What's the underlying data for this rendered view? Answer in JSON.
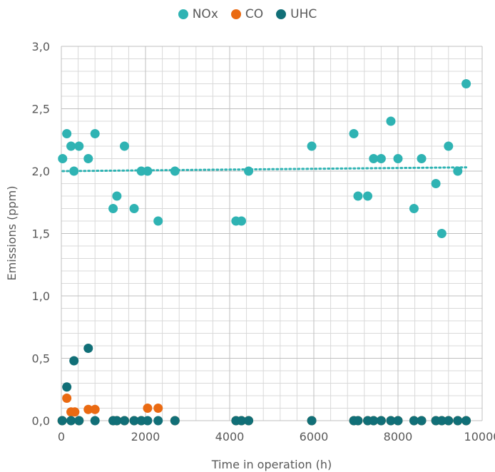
{
  "chart_data": {
    "type": "scatter",
    "xlabel": "Time in operation (h)",
    "ylabel": "Emissions (ppm)",
    "xlim": [
      0,
      10000
    ],
    "ylim": [
      0,
      3.0
    ],
    "x_ticks": [
      0,
      2000,
      4000,
      6000,
      8000,
      10000
    ],
    "x_tick_labels": [
      "0",
      "2000",
      "4000",
      "6000",
      "8000",
      "10000"
    ],
    "y_ticks": [
      0,
      0.5,
      1.0,
      1.5,
      2.0,
      2.5,
      3.0
    ],
    "y_tick_labels": [
      "0,0",
      "0,5",
      "1,0",
      "1,5",
      "2,0",
      "2,5",
      "3,0"
    ],
    "grid": true,
    "minor_grid": true,
    "legend_position": "top-center",
    "series": [
      {
        "name": "NOx",
        "color": "#2fb3b3",
        "trendline": {
          "type": "linear",
          "style": "dotted",
          "y_start": 2.0,
          "y_end": 2.03
        },
        "points": [
          [
            30,
            2.1
          ],
          [
            130,
            2.3
          ],
          [
            230,
            2.2
          ],
          [
            300,
            2.0
          ],
          [
            420,
            2.2
          ],
          [
            640,
            2.1
          ],
          [
            800,
            2.3
          ],
          [
            1230,
            1.7
          ],
          [
            1320,
            1.8
          ],
          [
            1500,
            2.2
          ],
          [
            1730,
            1.7
          ],
          [
            1900,
            2.0
          ],
          [
            2050,
            2.0
          ],
          [
            2300,
            1.6
          ],
          [
            2700,
            2.0
          ],
          [
            4150,
            1.6
          ],
          [
            4280,
            1.6
          ],
          [
            4450,
            2.0
          ],
          [
            5950,
            2.2
          ],
          [
            6950,
            2.3
          ],
          [
            7050,
            1.8
          ],
          [
            7280,
            1.8
          ],
          [
            7420,
            2.1
          ],
          [
            7600,
            2.1
          ],
          [
            7830,
            2.4
          ],
          [
            8000,
            2.1
          ],
          [
            8380,
            1.7
          ],
          [
            8560,
            2.1
          ],
          [
            8900,
            1.9
          ],
          [
            9040,
            1.5
          ],
          [
            9200,
            2.2
          ],
          [
            9420,
            2.0
          ],
          [
            9620,
            2.7
          ]
        ]
      },
      {
        "name": "CO",
        "color": "#ea6a12",
        "points": [
          [
            20,
            0.0
          ],
          [
            130,
            0.18
          ],
          [
            230,
            0.07
          ],
          [
            320,
            0.07
          ],
          [
            420,
            0.0
          ],
          [
            640,
            0.09
          ],
          [
            800,
            0.09
          ],
          [
            1230,
            0.0
          ],
          [
            1320,
            0.0
          ],
          [
            1500,
            0.0
          ],
          [
            1730,
            0.0
          ],
          [
            1900,
            0.0
          ],
          [
            2050,
            0.1
          ],
          [
            2300,
            0.1
          ],
          [
            2700,
            0.0
          ],
          [
            4150,
            0.0
          ],
          [
            4280,
            0.0
          ],
          [
            4450,
            0.0
          ],
          [
            5950,
            0.0
          ],
          [
            6950,
            0.0
          ],
          [
            7050,
            0.0
          ],
          [
            7280,
            0.0
          ],
          [
            7420,
            0.0
          ],
          [
            7600,
            0.0
          ],
          [
            7830,
            0.0
          ],
          [
            8000,
            0.0
          ],
          [
            8380,
            0.0
          ],
          [
            8560,
            0.0
          ],
          [
            8900,
            0.0
          ],
          [
            9040,
            0.0
          ],
          [
            9200,
            0.0
          ],
          [
            9420,
            0.0
          ],
          [
            9620,
            0.0
          ]
        ]
      },
      {
        "name": "UHC",
        "color": "#116f77",
        "points": [
          [
            20,
            0.0
          ],
          [
            130,
            0.27
          ],
          [
            230,
            0.0
          ],
          [
            300,
            0.48
          ],
          [
            420,
            0.0
          ],
          [
            640,
            0.58
          ],
          [
            800,
            0.0
          ],
          [
            1230,
            0.0
          ],
          [
            1320,
            0.0
          ],
          [
            1500,
            0.0
          ],
          [
            1730,
            0.0
          ],
          [
            1900,
            0.0
          ],
          [
            2050,
            0.0
          ],
          [
            2300,
            0.0
          ],
          [
            2700,
            0.0
          ],
          [
            4150,
            0.0
          ],
          [
            4280,
            0.0
          ],
          [
            4450,
            0.0
          ],
          [
            5950,
            0.0
          ],
          [
            6950,
            0.0
          ],
          [
            7050,
            0.0
          ],
          [
            7280,
            0.0
          ],
          [
            7420,
            0.0
          ],
          [
            7600,
            0.0
          ],
          [
            7830,
            0.0
          ],
          [
            8000,
            0.0
          ],
          [
            8380,
            0.0
          ],
          [
            8560,
            0.0
          ],
          [
            8900,
            0.0
          ],
          [
            9040,
            0.0
          ],
          [
            9200,
            0.0
          ],
          [
            9420,
            0.0
          ],
          [
            9620,
            0.0
          ]
        ]
      }
    ]
  }
}
